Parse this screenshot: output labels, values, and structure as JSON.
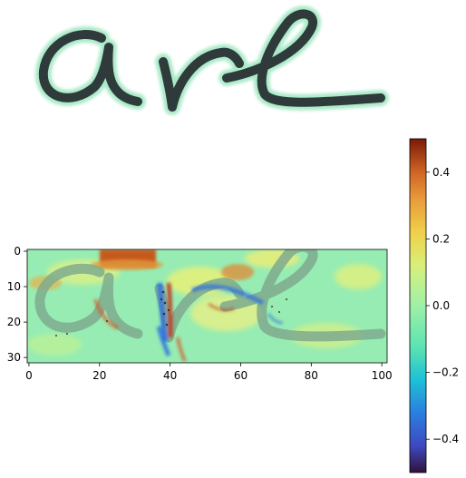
{
  "chart_data": [
    {
      "type": "image",
      "description_text": "",
      "word": "are"
    },
    {
      "type": "heatmap",
      "x_ticks": [
        0,
        20,
        40,
        60,
        80,
        100
      ],
      "y_ticks": [
        0,
        10,
        20,
        30
      ],
      "xlim": [
        -0.5,
        101.5
      ],
      "ylim": [
        31.5,
        -0.5
      ],
      "colormap": "turbo",
      "colorbar": {
        "range": [
          -0.5,
          0.5
        ],
        "ticks": [
          0.4,
          0.2,
          0.0,
          -0.2,
          -0.4
        ],
        "tick_labels": [
          "0.4",
          "0.2",
          "0.0",
          "−0.2",
          "−0.4"
        ]
      },
      "grid": false
    }
  ],
  "colors": {
    "ink": "#2f3a3a",
    "ink_halo": "#8fe3b8",
    "heat_background": "#96ecb3",
    "positive_strong": "#c65a1e",
    "negative_strong": "#2d6ee0"
  }
}
